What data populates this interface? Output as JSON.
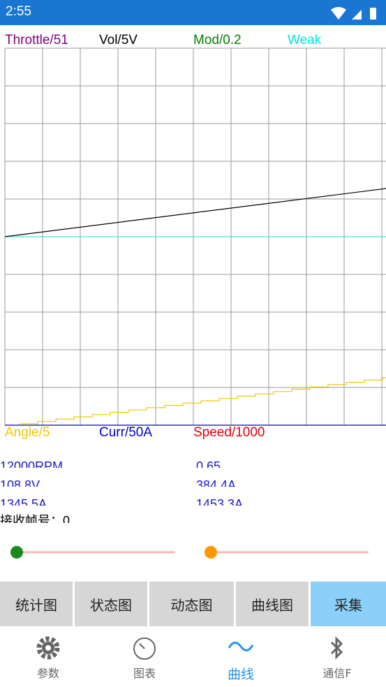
{
  "status": {
    "time": "2:55"
  },
  "plot": {
    "top_labels": [
      "Throttle/51",
      "Vol/5V",
      "Mod/0.2",
      "Weak"
    ],
    "bottom_labels": [
      "Angle/5",
      "Curr/50A",
      "Speed/1000"
    ]
  },
  "readouts": {
    "left": [
      "12000RPM",
      "108.8V",
      "1345.5A"
    ],
    "right": [
      "0.65",
      "384.4A",
      "1453.3A"
    ],
    "frame": "接收帧号：0"
  },
  "buttons": [
    "统计图",
    "状态图",
    "动态图",
    "曲线图",
    "采集"
  ],
  "nav": [
    "参数",
    "图表",
    "曲线",
    "通信F"
  ]
}
